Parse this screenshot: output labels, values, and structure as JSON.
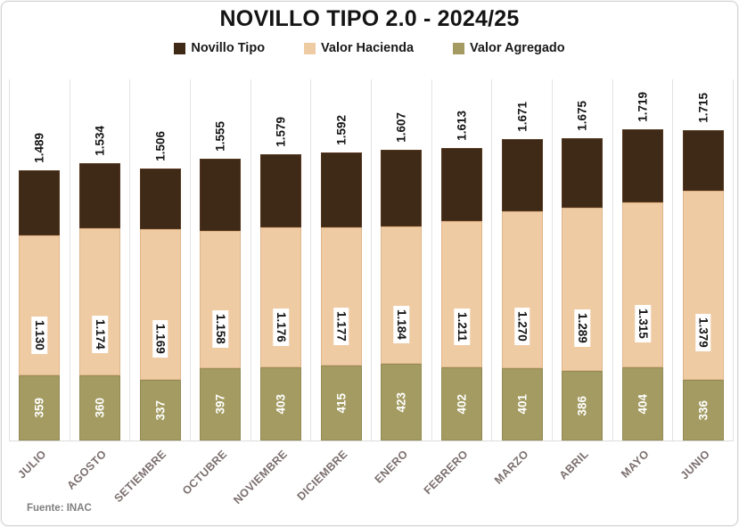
{
  "title": "NOVILLO TIPO 2.0 - 2024/25",
  "source_note": "Fuente: INAC",
  "legend": {
    "items": [
      {
        "label": "Novillo Tipo",
        "color": "#3f2917"
      },
      {
        "label": "Valor Hacienda",
        "color": "#efcba4"
      },
      {
        "label": "Valor Agregado",
        "color": "#a39b61"
      }
    ]
  },
  "colors": {
    "novillo_tipo": "#3f2917",
    "valor_hacienda": "#efcba4",
    "valor_agregado": "#a39b61",
    "gridline": "#e3e3e3",
    "month_text": "#7b6f6e",
    "value_text": "#141414",
    "va_value_text": "#ffffff"
  },
  "chart_data": {
    "type": "bar",
    "stacked": true,
    "title": "NOVILLO TIPO 2.0 - 2024/25",
    "categories": [
      "JULIO",
      "AGOSTO",
      "SETIEMBRE",
      "OCTUBRE",
      "NOVIEMBRE",
      "DICIEMBRE",
      "ENERO",
      "FEBRERO",
      "MARZO",
      "ABRIL",
      "MAYO",
      "JUNIO"
    ],
    "series": [
      {
        "name": "Novillo Tipo",
        "color": "#3f2917",
        "values": [
          1489,
          1534,
          1506,
          1555,
          1579,
          1592,
          1607,
          1613,
          1671,
          1675,
          1719,
          1715
        ]
      },
      {
        "name": "Valor Hacienda",
        "color": "#efcba4",
        "values": [
          1130,
          1174,
          1169,
          1158,
          1176,
          1177,
          1184,
          1211,
          1270,
          1289,
          1315,
          1379
        ]
      },
      {
        "name": "Valor Agregado",
        "color": "#a39b61",
        "values": [
          359,
          360,
          337,
          397,
          403,
          415,
          423,
          402,
          401,
          386,
          404,
          336
        ]
      }
    ],
    "relationship": "Novillo Tipo = Valor Hacienda + Valor Agregado; stacked bar: Valor Agregado at base, Valor Hacienda boundary at its value, Novillo Tipo is the bar total",
    "value_label_format": "thousands separated by dot, e.g. 1.489",
    "legend_position": "top",
    "grid": "vertical category separators only",
    "ylim": [
      0,
      1995
    ]
  }
}
